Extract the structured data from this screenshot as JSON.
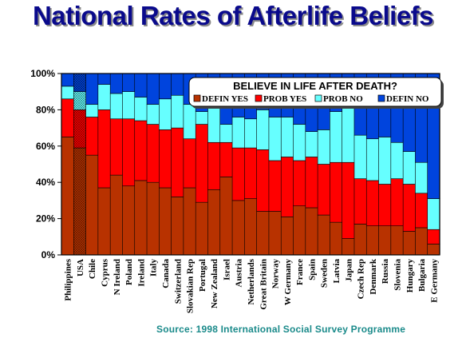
{
  "title": "National Rates of Afterlife Beliefs",
  "source": "Source: 1998 International Social Survey Programme",
  "chart_data": {
    "type": "bar",
    "stacked": true,
    "title": "National Rates of Afterlife Beliefs",
    "legend_title": "BELIEVE IN LIFE AFTER DEATH?",
    "legend_position": "top-right",
    "categories": [
      "Philippines",
      "USA",
      "Chile",
      "Cyprus",
      "N Ireland",
      "Poland",
      "Ireland",
      "Italy",
      "Canada",
      "Switzerland",
      "Slovakian Rep",
      "Portugal",
      "New Zealand",
      "Israel",
      "Austria",
      "Netherlands",
      "Great Britain",
      "Norway",
      "W Germany",
      "France",
      "Spain",
      "Sweden",
      "Latvia",
      "Japan",
      "Czech Rep",
      "Denmark",
      "Russia",
      "Slovenia",
      "Hungary",
      "Bulgaria",
      "E Germany"
    ],
    "highlight_category": "USA",
    "yticks": [
      "0%",
      "20%",
      "40%",
      "60%",
      "80%",
      "100%"
    ],
    "ylim": [
      0,
      100
    ],
    "series": [
      {
        "name": "DEFIN YES",
        "color": "#b83200",
        "values": [
          65,
          59,
          55,
          37,
          44,
          38,
          41,
          40,
          37,
          32,
          37,
          29,
          36,
          43,
          30,
          31,
          24,
          24,
          21,
          27,
          26,
          22,
          18,
          9,
          17,
          16,
          16,
          16,
          13,
          15,
          6
        ]
      },
      {
        "name": "PROB YES",
        "color": "#ff0000",
        "values": [
          21,
          21,
          21,
          43,
          31,
          37,
          33,
          32,
          32,
          38,
          27,
          43,
          26,
          19,
          29,
          28,
          34,
          28,
          33,
          25,
          28,
          28,
          33,
          42,
          25,
          25,
          23,
          26,
          26,
          19,
          8
        ]
      },
      {
        "name": "PROB NO",
        "color": "#66ffff",
        "values": [
          7,
          10,
          7,
          14,
          14,
          15,
          13,
          11,
          17,
          18,
          19,
          7,
          19,
          10,
          17,
          16,
          22,
          24,
          22,
          20,
          14,
          19,
          28,
          32,
          24,
          23,
          26,
          20,
          18,
          17,
          17
        ]
      },
      {
        "name": "DEFIN NO",
        "color": "#0044dd",
        "values": [
          7,
          10,
          17,
          6,
          11,
          10,
          13,
          17,
          14,
          12,
          17,
          21,
          19,
          28,
          24,
          25,
          20,
          24,
          24,
          28,
          32,
          31,
          21,
          17,
          34,
          36,
          35,
          38,
          43,
          49,
          69
        ]
      }
    ]
  }
}
